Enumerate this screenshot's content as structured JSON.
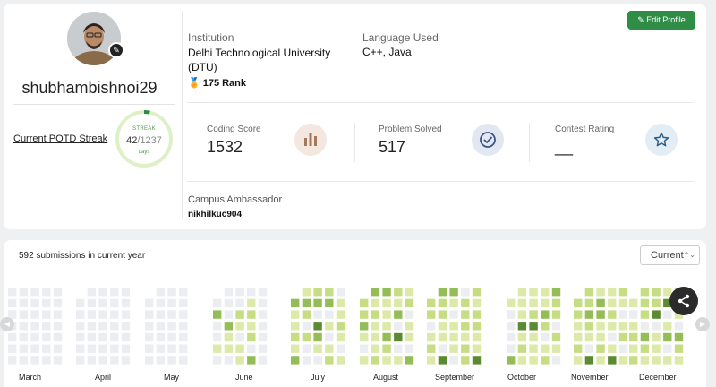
{
  "profile": {
    "username": "shubhambishnoi29",
    "potd_link": "Current POTD Streak",
    "streak": {
      "label": "STREAK",
      "current": "42",
      "total": "/1237",
      "unit": "days",
      "progress": 0.034
    },
    "edit_button": "Edit Profile"
  },
  "info": {
    "institution_label": "Institution",
    "institution": "Delhi Technological University (DTU)",
    "rank": "175 Rank",
    "language_label": "Language Used",
    "languages": "C++, Java"
  },
  "stats": [
    {
      "label": "Coding Score",
      "value": "1532",
      "icon": "bar-chart-icon"
    },
    {
      "label": "Problem Solved",
      "value": "517",
      "icon": "check-circle-icon"
    },
    {
      "label": "Contest Rating",
      "value": "__",
      "icon": "star-icon"
    }
  ],
  "campus": {
    "label": "Campus Ambassador",
    "value": "nikhilkuc904"
  },
  "submissions": {
    "summary": "592 submissions in current year",
    "year_select": "Current",
    "months": [
      "March",
      "April",
      "May",
      "June",
      "July",
      "August",
      "September",
      "October",
      "November",
      "December"
    ]
  },
  "colors": {
    "accent": "#2f8d46",
    "empty": "#ebedf0",
    "l1": "#dde9a9",
    "l2": "#c6dd84",
    "l3": "#94bd57",
    "l4": "#5b8a32"
  }
}
